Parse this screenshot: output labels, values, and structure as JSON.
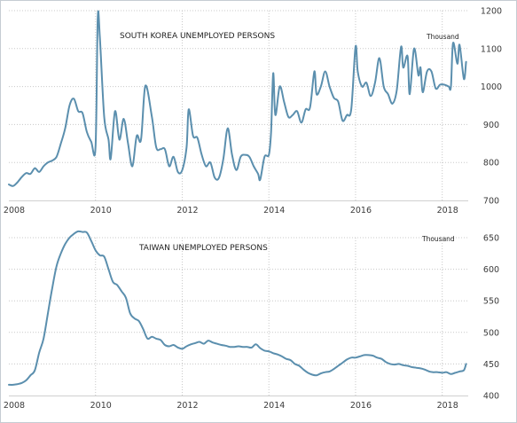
{
  "chart_data": [
    {
      "type": "line",
      "title": "SOUTH KOREA UNEMPLOYED PERSONS",
      "unit": "Thousand",
      "xlim": [
        2008.0,
        2018.6
      ],
      "ylim": [
        700,
        1200
      ],
      "x_ticks": [
        2008,
        2010,
        2012,
        2014,
        2016,
        2018
      ],
      "y_ticks": [
        700,
        800,
        900,
        1000,
        1100,
        1200
      ],
      "grid": true,
      "series": [
        {
          "color": "#5b8fae",
          "points": [
            [
              2008.0,
              742
            ],
            [
              2008.1,
              738
            ],
            [
              2008.2,
              748
            ],
            [
              2008.3,
              762
            ],
            [
              2008.4,
              772
            ],
            [
              2008.5,
              770
            ],
            [
              2008.6,
              785
            ],
            [
              2008.7,
              775
            ],
            [
              2008.8,
              790
            ],
            [
              2008.9,
              800
            ],
            [
              2009.0,
              805
            ],
            [
              2009.1,
              815
            ],
            [
              2009.2,
              850
            ],
            [
              2009.3,
              890
            ],
            [
              2009.4,
              950
            ],
            [
              2009.5,
              968
            ],
            [
              2009.6,
              935
            ],
            [
              2009.7,
              930
            ],
            [
              2009.8,
              880
            ],
            [
              2009.9,
              855
            ],
            [
              2010.0,
              840
            ],
            [
              2010.05,
              1180
            ],
            [
              2010.1,
              1130
            ],
            [
              2010.2,
              920
            ],
            [
              2010.3,
              860
            ],
            [
              2010.35,
              810
            ],
            [
              2010.45,
              935
            ],
            [
              2010.55,
              860
            ],
            [
              2010.65,
              915
            ],
            [
              2010.75,
              850
            ],
            [
              2010.85,
              790
            ],
            [
              2010.95,
              870
            ],
            [
              2011.05,
              860
            ],
            [
              2011.15,
              1002
            ],
            [
              2011.3,
              920
            ],
            [
              2011.4,
              840
            ],
            [
              2011.5,
              835
            ],
            [
              2011.6,
              835
            ],
            [
              2011.7,
              790
            ],
            [
              2011.8,
              815
            ],
            [
              2011.9,
              775
            ],
            [
              2012.0,
              780
            ],
            [
              2012.1,
              840
            ],
            [
              2012.15,
              940
            ],
            [
              2012.25,
              870
            ],
            [
              2012.35,
              865
            ],
            [
              2012.45,
              820
            ],
            [
              2012.55,
              790
            ],
            [
              2012.65,
              800
            ],
            [
              2012.75,
              760
            ],
            [
              2012.85,
              760
            ],
            [
              2012.95,
              810
            ],
            [
              2013.05,
              890
            ],
            [
              2013.15,
              820
            ],
            [
              2013.25,
              780
            ],
            [
              2013.35,
              815
            ],
            [
              2013.45,
              820
            ],
            [
              2013.55,
              815
            ],
            [
              2013.65,
              790
            ],
            [
              2013.75,
              770
            ],
            [
              2013.8,
              755
            ],
            [
              2013.9,
              815
            ],
            [
              2014.0,
              820
            ],
            [
              2014.05,
              880
            ],
            [
              2014.1,
              1035
            ],
            [
              2014.15,
              925
            ],
            [
              2014.25,
              1000
            ],
            [
              2014.35,
              960
            ],
            [
              2014.45,
              920
            ],
            [
              2014.55,
              925
            ],
            [
              2014.65,
              935
            ],
            [
              2014.75,
              905
            ],
            [
              2014.85,
              940
            ],
            [
              2014.95,
              945
            ],
            [
              2015.05,
              1040
            ],
            [
              2015.1,
              980
            ],
            [
              2015.2,
              1000
            ],
            [
              2015.3,
              1040
            ],
            [
              2015.4,
              1000
            ],
            [
              2015.5,
              970
            ],
            [
              2015.6,
              960
            ],
            [
              2015.7,
              910
            ],
            [
              2015.8,
              925
            ],
            [
              2015.9,
              940
            ],
            [
              2016.0,
              1105
            ],
            [
              2016.05,
              1040
            ],
            [
              2016.15,
              1000
            ],
            [
              2016.25,
              1010
            ],
            [
              2016.35,
              975
            ],
            [
              2016.45,
              1010
            ],
            [
              2016.55,
              1075
            ],
            [
              2016.65,
              1000
            ],
            [
              2016.75,
              980
            ],
            [
              2016.85,
              955
            ],
            [
              2016.95,
              990
            ],
            [
              2017.05,
              1105
            ],
            [
              2017.1,
              1050
            ],
            [
              2017.2,
              1080
            ],
            [
              2017.25,
              980
            ],
            [
              2017.35,
              1100
            ],
            [
              2017.45,
              1030
            ],
            [
              2017.5,
              1050
            ],
            [
              2017.55,
              985
            ],
            [
              2017.65,
              1040
            ],
            [
              2017.75,
              1040
            ],
            [
              2017.85,
              995
            ],
            [
              2017.95,
              1005
            ],
            [
              2018.05,
              1005
            ],
            [
              2018.15,
              1000
            ],
            [
              2018.2,
              1000
            ],
            [
              2018.25,
              1115
            ],
            [
              2018.35,
              1060
            ],
            [
              2018.4,
              1110
            ],
            [
              2018.5,
              1020
            ],
            [
              2018.55,
              1065
            ]
          ]
        }
      ]
    },
    {
      "type": "line",
      "title": "TAIWAN UNEMPLOYED PERSONS",
      "unit": "Thousand",
      "xlim": [
        2008.0,
        2018.6
      ],
      "ylim": [
        400,
        650
      ],
      "x_ticks": [
        2008,
        2010,
        2012,
        2014,
        2016,
        2018
      ],
      "y_ticks": [
        400,
        450,
        500,
        550,
        600,
        650
      ],
      "grid": true,
      "series": [
        {
          "color": "#5b8fae",
          "points": [
            [
              2008.0,
              417
            ],
            [
              2008.1,
              417
            ],
            [
              2008.2,
              418
            ],
            [
              2008.3,
              420
            ],
            [
              2008.4,
              424
            ],
            [
              2008.5,
              432
            ],
            [
              2008.6,
              440
            ],
            [
              2008.7,
              468
            ],
            [
              2008.8,
              490
            ],
            [
              2008.9,
              530
            ],
            [
              2009.0,
              570
            ],
            [
              2009.1,
              605
            ],
            [
              2009.2,
              625
            ],
            [
              2009.3,
              640
            ],
            [
              2009.4,
              650
            ],
            [
              2009.5,
              656
            ],
            [
              2009.6,
              660
            ],
            [
              2009.7,
              659
            ],
            [
              2009.8,
              658
            ],
            [
              2009.9,
              645
            ],
            [
              2010.0,
              630
            ],
            [
              2010.1,
              622
            ],
            [
              2010.2,
              620
            ],
            [
              2010.3,
              600
            ],
            [
              2010.4,
              580
            ],
            [
              2010.5,
              575
            ],
            [
              2010.6,
              565
            ],
            [
              2010.7,
              555
            ],
            [
              2010.8,
              530
            ],
            [
              2010.9,
              522
            ],
            [
              2011.0,
              518
            ],
            [
              2011.1,
              505
            ],
            [
              2011.2,
              490
            ],
            [
              2011.3,
              493
            ],
            [
              2011.4,
              490
            ],
            [
              2011.5,
              488
            ],
            [
              2011.6,
              480
            ],
            [
              2011.7,
              478
            ],
            [
              2011.8,
              480
            ],
            [
              2011.9,
              476
            ],
            [
              2012.0,
              474
            ],
            [
              2012.1,
              478
            ],
            [
              2012.2,
              481
            ],
            [
              2012.3,
              483
            ],
            [
              2012.4,
              485
            ],
            [
              2012.5,
              482
            ],
            [
              2012.6,
              487
            ],
            [
              2012.7,
              484
            ],
            [
              2012.8,
              482
            ],
            [
              2012.9,
              480
            ],
            [
              2013.0,
              479
            ],
            [
              2013.1,
              477
            ],
            [
              2013.2,
              477
            ],
            [
              2013.3,
              478
            ],
            [
              2013.4,
              477
            ],
            [
              2013.5,
              477
            ],
            [
              2013.6,
              476
            ],
            [
              2013.7,
              481
            ],
            [
              2013.8,
              475
            ],
            [
              2013.9,
              471
            ],
            [
              2014.0,
              470
            ],
            [
              2014.1,
              467
            ],
            [
              2014.2,
              465
            ],
            [
              2014.3,
              462
            ],
            [
              2014.4,
              458
            ],
            [
              2014.5,
              456
            ],
            [
              2014.6,
              450
            ],
            [
              2014.7,
              447
            ],
            [
              2014.8,
              441
            ],
            [
              2014.9,
              436
            ],
            [
              2015.0,
              433
            ],
            [
              2015.1,
              432
            ],
            [
              2015.2,
              435
            ],
            [
              2015.3,
              437
            ],
            [
              2015.4,
              438
            ],
            [
              2015.5,
              442
            ],
            [
              2015.6,
              447
            ],
            [
              2015.7,
              452
            ],
            [
              2015.8,
              457
            ],
            [
              2015.9,
              460
            ],
            [
              2016.0,
              460
            ],
            [
              2016.1,
              462
            ],
            [
              2016.2,
              464
            ],
            [
              2016.3,
              464
            ],
            [
              2016.4,
              463
            ],
            [
              2016.5,
              460
            ],
            [
              2016.6,
              458
            ],
            [
              2016.7,
              453
            ],
            [
              2016.8,
              450
            ],
            [
              2016.9,
              449
            ],
            [
              2017.0,
              450
            ],
            [
              2017.1,
              448
            ],
            [
              2017.2,
              447
            ],
            [
              2017.3,
              445
            ],
            [
              2017.4,
              444
            ],
            [
              2017.5,
              443
            ],
            [
              2017.6,
              441
            ],
            [
              2017.7,
              438
            ],
            [
              2017.8,
              437
            ],
            [
              2017.9,
              437
            ],
            [
              2018.0,
              436
            ],
            [
              2018.1,
              437
            ],
            [
              2018.2,
              434
            ],
            [
              2018.3,
              436
            ],
            [
              2018.4,
              438
            ],
            [
              2018.5,
              440
            ],
            [
              2018.55,
              450
            ]
          ]
        }
      ]
    }
  ]
}
